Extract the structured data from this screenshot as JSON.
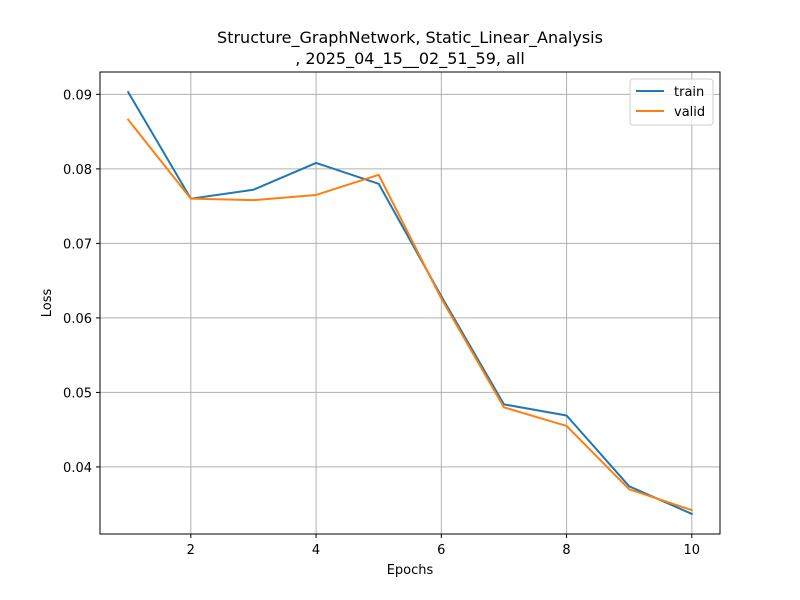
{
  "chart_data": {
    "type": "line",
    "title_line1": "Structure_GraphNetwork, Static_Linear_Analysis",
    "title_line2": ", 2025_04_15__02_51_59, all",
    "xlabel": "Epochs",
    "ylabel": "Loss",
    "xlim": [
      0.55,
      10.45
    ],
    "ylim": [
      0.031,
      0.093
    ],
    "xticks": [
      2,
      4,
      6,
      8,
      10
    ],
    "yticks": [
      0.04,
      0.05,
      0.06,
      0.07,
      0.08,
      0.09
    ],
    "ytick_labels": [
      "0.04",
      "0.05",
      "0.06",
      "0.07",
      "0.08",
      "0.09"
    ],
    "grid": true,
    "legend_position": "top-right",
    "x": [
      1,
      2,
      3,
      4,
      5,
      6,
      7,
      8,
      9,
      10
    ],
    "series": [
      {
        "name": "train",
        "color": "#1f77b4",
        "values": [
          0.0903,
          0.076,
          0.0772,
          0.0808,
          0.078,
          0.0629,
          0.0484,
          0.0469,
          0.0374,
          0.0337
        ]
      },
      {
        "name": "valid",
        "color": "#ff7f0e",
        "values": [
          0.0866,
          0.076,
          0.0758,
          0.0765,
          0.0792,
          0.0626,
          0.048,
          0.0455,
          0.037,
          0.0342
        ]
      }
    ]
  }
}
